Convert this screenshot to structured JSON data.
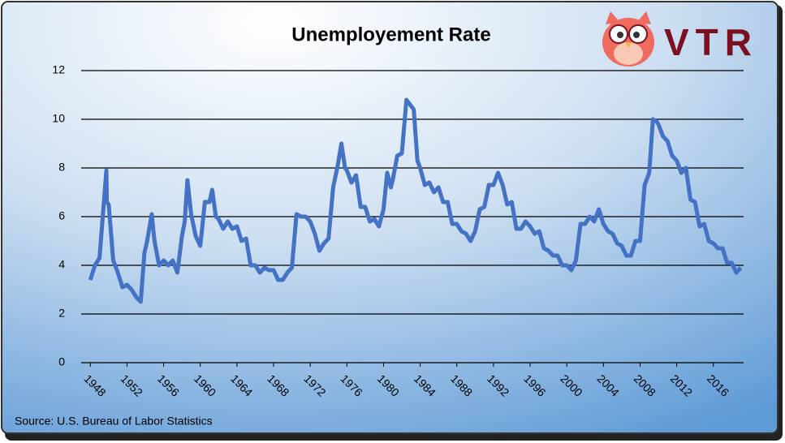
{
  "chart_data": {
    "type": "line",
    "title": "Unemployement Rate",
    "source": "Source: U.S. Bureau of Labor Statistics",
    "logo": "VTR",
    "color": "#4472c4",
    "grid": true,
    "xlim": [
      1947,
      2019.3
    ],
    "xticks": [
      1948,
      1952,
      1956,
      1960,
      1964,
      1968,
      1972,
      1976,
      1980,
      1984,
      1988,
      1992,
      1996,
      2000,
      2004,
      2008,
      2012,
      2016
    ],
    "ylim": [
      0,
      12
    ],
    "yticks": [
      0,
      2,
      4,
      6,
      8,
      10,
      12
    ],
    "x": [
      1948,
      1948.5,
      1949,
      1949.75,
      1949.8,
      1950,
      1950.5,
      1951,
      1951.5,
      1952,
      1952.5,
      1953,
      1953.5,
      1953.9,
      1954.2,
      1954.7,
      1955,
      1955.5,
      1956,
      1956.5,
      1957,
      1957.5,
      1958,
      1958.3,
      1958.6,
      1959,
      1959.5,
      1960,
      1960.5,
      1961,
      1961.3,
      1961.7,
      1962,
      1962.5,
      1963,
      1963.5,
      1964,
      1964.5,
      1965,
      1965.5,
      1966,
      1966.5,
      1967,
      1967.5,
      1968,
      1968.5,
      1969,
      1969.5,
      1970,
      1970.5,
      1971,
      1971.5,
      1972,
      1972.5,
      1973,
      1973.5,
      1974,
      1974.5,
      1975,
      1975.4,
      1975.8,
      1976,
      1976.5,
      1977,
      1977.5,
      1978,
      1978.5,
      1979,
      1979.5,
      1980,
      1980.4,
      1980.8,
      1981,
      1981.5,
      1982,
      1982.5,
      1982.9,
      1983.3,
      1983.7,
      1984,
      1984.5,
      1985,
      1985.5,
      1986,
      1986.5,
      1987,
      1987.5,
      1988,
      1988.5,
      1989,
      1989.5,
      1990,
      1990.5,
      1991,
      1991.5,
      1992,
      1992.5,
      1993,
      1993.5,
      1994,
      1994.5,
      1995,
      1995.5,
      1996,
      1996.5,
      1997,
      1997.5,
      1998,
      1998.5,
      1999,
      1999.5,
      2000,
      2000.5,
      2001,
      2001.5,
      2002,
      2002.5,
      2003,
      2003.5,
      2004,
      2004.5,
      2005,
      2005.5,
      2006,
      2006.5,
      2007,
      2007.5,
      2008,
      2008.5,
      2009,
      2009.4,
      2009.8,
      2010,
      2010.5,
      2011,
      2011.5,
      2012,
      2012.5,
      2013,
      2013.5,
      2014,
      2014.5,
      2015,
      2015.5,
      2016,
      2016.5,
      2017,
      2017.5,
      2018,
      2018.5,
      2019
    ],
    "series": [
      {
        "name": "Unemployment Rate",
        "color": "#4472c4",
        "values": [
          3.4,
          4.0,
          4.3,
          7.9,
          6.6,
          6.5,
          4.2,
          3.7,
          3.1,
          3.2,
          3.0,
          2.7,
          2.5,
          4.5,
          5.0,
          6.1,
          5.0,
          4.0,
          4.2,
          4.0,
          4.2,
          3.7,
          5.2,
          5.8,
          7.5,
          6.1,
          5.2,
          4.8,
          6.6,
          6.6,
          7.1,
          6.0,
          5.9,
          5.5,
          5.8,
          5.5,
          5.6,
          5.0,
          5.1,
          4.0,
          4.0,
          3.7,
          3.9,
          3.8,
          3.8,
          3.4,
          3.4,
          3.7,
          3.9,
          6.1,
          6.0,
          6.0,
          5.8,
          5.3,
          4.6,
          4.9,
          5.1,
          7.2,
          8.1,
          9.0,
          8.0,
          7.9,
          7.4,
          7.7,
          6.4,
          6.4,
          5.8,
          5.9,
          5.6,
          6.3,
          7.8,
          7.2,
          7.5,
          8.5,
          8.6,
          10.8,
          10.6,
          10.4,
          8.3,
          8.0,
          7.3,
          7.4,
          7.0,
          7.2,
          6.6,
          6.6,
          5.7,
          5.7,
          5.4,
          5.3,
          5.0,
          5.4,
          6.3,
          6.4,
          7.3,
          7.3,
          7.8,
          7.3,
          6.5,
          6.6,
          5.5,
          5.5,
          5.8,
          5.6,
          5.3,
          5.4,
          4.7,
          4.6,
          4.4,
          4.4,
          4.0,
          4.0,
          3.8,
          4.2,
          5.7,
          5.7,
          6.0,
          5.8,
          6.3,
          5.7,
          5.4,
          5.3,
          4.9,
          4.8,
          4.4,
          4.4,
          5.0,
          5.0,
          7.3,
          7.8,
          10.0,
          9.9,
          9.8,
          9.3,
          9.1,
          8.5,
          8.3,
          7.8,
          8.0,
          6.7,
          6.6,
          5.6,
          5.7,
          5.0,
          4.9,
          4.7,
          4.7,
          4.1,
          4.1,
          3.7,
          3.9
        ]
      }
    ]
  }
}
